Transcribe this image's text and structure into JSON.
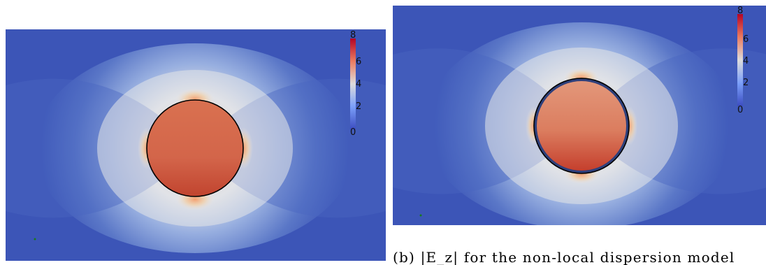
{
  "figure": {
    "panels": [
      {
        "id": "a",
        "colorbar": {
          "ticks": [
            "8",
            "6",
            "4",
            "2",
            "0"
          ],
          "range": [
            0,
            8
          ]
        },
        "disk_value": 7.1
      },
      {
        "id": "b",
        "colorbar": {
          "ticks": [
            "8",
            "6",
            "4",
            "2",
            "0"
          ],
          "range": [
            0,
            8
          ]
        },
        "disk_value": 6.6
      }
    ],
    "caption_b": "(b) |E_z| for the non-local dispersion model"
  },
  "colors": {
    "background_field": "#3c55b7",
    "low": "#3b4cc0",
    "mid": "#dcdde0",
    "high": "#b40426",
    "disk_a": "#d4664c",
    "disk_b": "#dc8063",
    "outline": "#000000"
  }
}
